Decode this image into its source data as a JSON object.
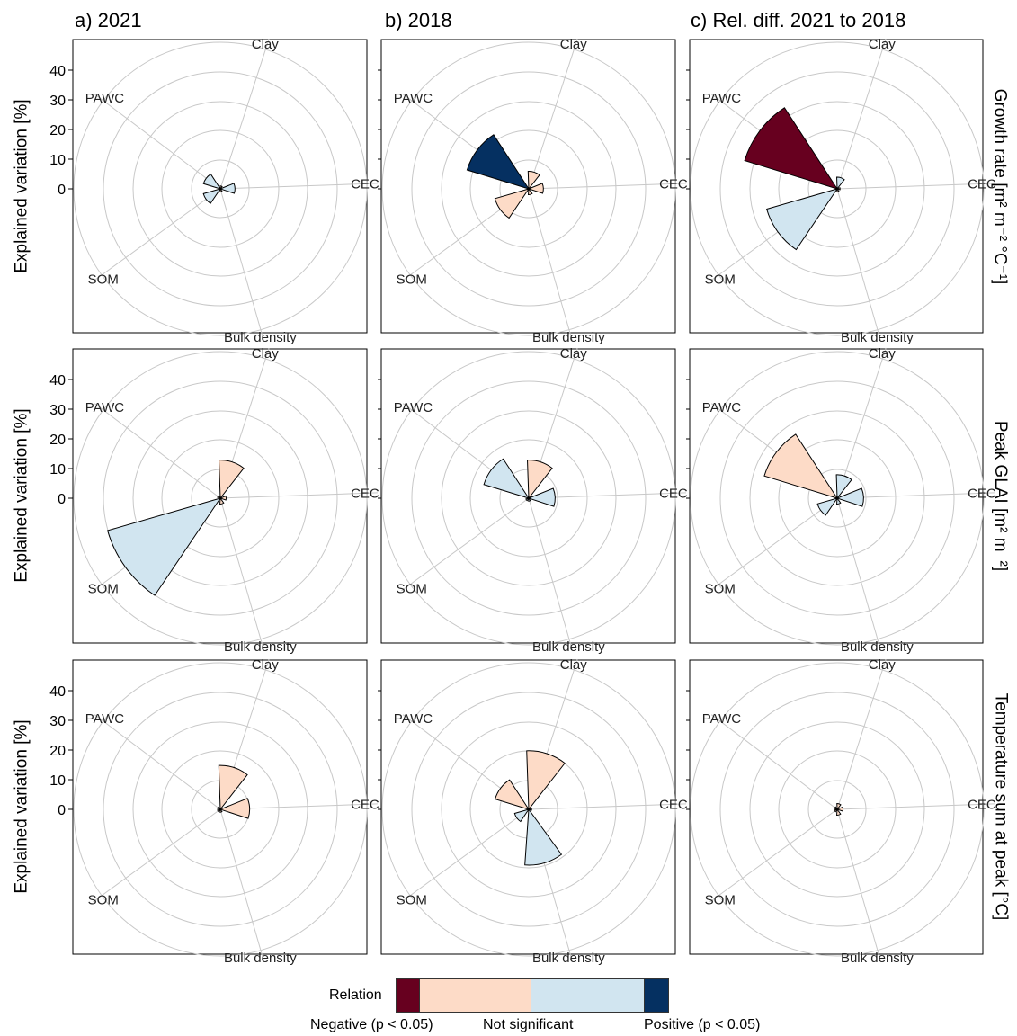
{
  "colors": {
    "negative_sig": "#67001F",
    "negative_ns": "#FDDBC7",
    "positive_ns": "#D1E5F0",
    "positive_sig": "#053061",
    "ring": "#c8c8c8",
    "frame": "#000000"
  },
  "column_titles": [
    "a) 2021",
    "b) 2018",
    "c) Rel. diff. 2021 to 2018"
  ],
  "row_labels": [
    "Growth rate [m² m⁻² °C⁻¹]",
    "Peak GLAI [m² m⁻²]",
    "Temperature sum at peak [°C]"
  ],
  "y_axis_title": "Explained variation [%]",
  "y_ticks": [
    "40",
    "30",
    "20",
    "10",
    "0"
  ],
  "legend": {
    "title": "Relation",
    "labels": [
      "Negative (p < 0.05)",
      "Not significant",
      "Positive (p < 0.05)"
    ]
  },
  "chart_data": {
    "type": "radial-bar",
    "variables": [
      "Clay",
      "CEC",
      "Bulk density",
      "SOM",
      "PAWC"
    ],
    "ylim": [
      0,
      50
    ],
    "ytick_values": [
      0,
      10,
      20,
      30,
      40
    ],
    "panels": [
      {
        "column": "a) 2021",
        "row": "Growth rate",
        "bars": [
          {
            "variable": "Clay",
            "value": 1,
            "relation": "Not significant",
            "sign": "negative"
          },
          {
            "variable": "CEC",
            "value": 5,
            "relation": "Not significant",
            "sign": "positive"
          },
          {
            "variable": "Bulk density",
            "value": 1,
            "relation": "Not significant",
            "sign": "negative"
          },
          {
            "variable": "SOM",
            "value": 6,
            "relation": "Not significant",
            "sign": "positive"
          },
          {
            "variable": "PAWC",
            "value": 6,
            "relation": "Not significant",
            "sign": "positive"
          }
        ]
      },
      {
        "column": "b) 2018",
        "row": "Growth rate",
        "bars": [
          {
            "variable": "Clay",
            "value": 6,
            "relation": "Not significant",
            "sign": "negative"
          },
          {
            "variable": "CEC",
            "value": 5,
            "relation": "Not significant",
            "sign": "negative"
          },
          {
            "variable": "Bulk density",
            "value": 2,
            "relation": "Not significant",
            "sign": "negative"
          },
          {
            "variable": "SOM",
            "value": 12,
            "relation": "Not significant",
            "sign": "negative"
          },
          {
            "variable": "PAWC",
            "value": 22,
            "relation": "Positive (p < 0.05)",
            "sign": "positive"
          }
        ]
      },
      {
        "column": "c) Rel. diff. 2021 to 2018",
        "row": "Growth rate",
        "bars": [
          {
            "variable": "Clay",
            "value": 4,
            "relation": "Not significant",
            "sign": "positive"
          },
          {
            "variable": "CEC",
            "value": 1,
            "relation": "Not significant",
            "sign": "negative"
          },
          {
            "variable": "Bulk density",
            "value": 1,
            "relation": "Not significant",
            "sign": "negative"
          },
          {
            "variable": "SOM",
            "value": 25,
            "relation": "Not significant",
            "sign": "positive"
          },
          {
            "variable": "PAWC",
            "value": 33,
            "relation": "Negative (p < 0.05)",
            "sign": "negative"
          }
        ]
      },
      {
        "column": "a) 2021",
        "row": "Peak GLAI",
        "bars": [
          {
            "variable": "Clay",
            "value": 13,
            "relation": "Not significant",
            "sign": "negative"
          },
          {
            "variable": "CEC",
            "value": 2,
            "relation": "Not significant",
            "sign": "negative"
          },
          {
            "variable": "Bulk density",
            "value": 2,
            "relation": "Not significant",
            "sign": "negative"
          },
          {
            "variable": "SOM",
            "value": 40,
            "relation": "Not significant",
            "sign": "positive"
          },
          {
            "variable": "PAWC",
            "value": 1,
            "relation": "Not significant",
            "sign": "negative"
          }
        ]
      },
      {
        "column": "b) 2018",
        "row": "Peak GLAI",
        "bars": [
          {
            "variable": "Clay",
            "value": 13,
            "relation": "Not significant",
            "sign": "negative"
          },
          {
            "variable": "CEC",
            "value": 9,
            "relation": "Not significant",
            "sign": "positive"
          },
          {
            "variable": "Bulk density",
            "value": 1,
            "relation": "Not significant",
            "sign": "positive"
          },
          {
            "variable": "SOM",
            "value": 1,
            "relation": "Not significant",
            "sign": "positive"
          },
          {
            "variable": "PAWC",
            "value": 16,
            "relation": "Not significant",
            "sign": "positive"
          }
        ]
      },
      {
        "column": "c) Rel. diff. 2021 to 2018",
        "row": "Peak GLAI",
        "bars": [
          {
            "variable": "Clay",
            "value": 8,
            "relation": "Not significant",
            "sign": "positive"
          },
          {
            "variable": "CEC",
            "value": 9,
            "relation": "Not significant",
            "sign": "positive"
          },
          {
            "variable": "Bulk density",
            "value": 2,
            "relation": "Not significant",
            "sign": "positive"
          },
          {
            "variable": "SOM",
            "value": 7,
            "relation": "Not significant",
            "sign": "positive"
          },
          {
            "variable": "PAWC",
            "value": 26,
            "relation": "Not significant",
            "sign": "negative"
          }
        ]
      },
      {
        "column": "a) 2021",
        "row": "Temperature sum at peak",
        "bars": [
          {
            "variable": "Clay",
            "value": 15,
            "relation": "Not significant",
            "sign": "negative"
          },
          {
            "variable": "CEC",
            "value": 10,
            "relation": "Not significant",
            "sign": "negative"
          },
          {
            "variable": "Bulk density",
            "value": 1,
            "relation": "Not significant",
            "sign": "negative"
          },
          {
            "variable": "SOM",
            "value": 1,
            "relation": "Not significant",
            "sign": "negative"
          },
          {
            "variable": "PAWC",
            "value": 1,
            "relation": "Not significant",
            "sign": "negative"
          }
        ]
      },
      {
        "column": "b) 2018",
        "row": "Temperature sum at peak",
        "bars": [
          {
            "variable": "Clay",
            "value": 20,
            "relation": "Not significant",
            "sign": "negative"
          },
          {
            "variable": "CEC",
            "value": 1,
            "relation": "Not significant",
            "sign": "negative"
          },
          {
            "variable": "Bulk density",
            "value": 19,
            "relation": "Not significant",
            "sign": "positive"
          },
          {
            "variable": "SOM",
            "value": 5,
            "relation": "Not significant",
            "sign": "positive"
          },
          {
            "variable": "PAWC",
            "value": 12,
            "relation": "Not significant",
            "sign": "negative"
          }
        ]
      },
      {
        "column": "c) Rel. diff. 2021 to 2018",
        "row": "Temperature sum at peak",
        "bars": [
          {
            "variable": "Clay",
            "value": 2,
            "relation": "Not significant",
            "sign": "negative"
          },
          {
            "variable": "CEC",
            "value": 2,
            "relation": "Not significant",
            "sign": "negative"
          },
          {
            "variable": "Bulk density",
            "value": 2,
            "relation": "Not significant",
            "sign": "negative"
          },
          {
            "variable": "SOM",
            "value": 1,
            "relation": "Not significant",
            "sign": "negative"
          },
          {
            "variable": "PAWC",
            "value": 1,
            "relation": "Not significant",
            "sign": "negative"
          }
        ]
      }
    ]
  }
}
